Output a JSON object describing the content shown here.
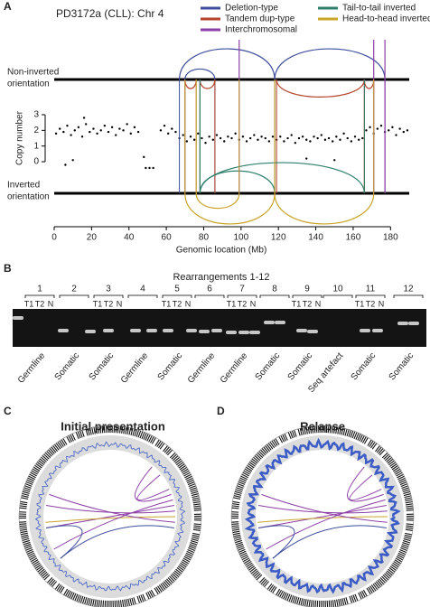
{
  "panel_a": {
    "label": "A",
    "title": "PD3172a (CLL): Chr 4",
    "legend": [
      {
        "name": "Deletion-type",
        "color": "#3e4d9c",
        "events": [
          [
            67,
            118
          ],
          [
            118,
            177
          ],
          [
            70,
            86
          ]
        ]
      },
      {
        "name": "Tandem dup-type",
        "color": "#b5432b",
        "events": [
          [
            70,
            76
          ],
          [
            78,
            86
          ],
          [
            119,
            166
          ],
          [
            166,
            171
          ]
        ]
      },
      {
        "name": "Interchromosomal",
        "color": "#8c3fa6",
        "events": [
          [
            99
          ],
          [
            171
          ],
          [
            177
          ]
        ]
      },
      {
        "name": "Tail-to-tail inverted",
        "color": "#2f7f6c",
        "events": [
          [
            78,
            118
          ],
          [
            78,
            166
          ]
        ]
      },
      {
        "name": "Head-to-head inverted",
        "color": "#c9a52a",
        "events": [
          [
            70,
            118
          ],
          [
            118,
            171
          ],
          [
            76,
            99
          ]
        ]
      }
    ],
    "non_inverted_label": [
      "Non-inverted",
      "orientation"
    ],
    "inverted_label": [
      "Inverted",
      "orientation"
    ],
    "ylabel": "Copy number",
    "xlabel": "Genomic location (Mb)",
    "xlim": [
      0,
      190
    ],
    "xticks": [
      0,
      20,
      40,
      60,
      80,
      100,
      120,
      140,
      160,
      180
    ],
    "ylim": [
      -0.5,
      3.3
    ],
    "yticks": [
      0,
      1,
      2,
      3
    ],
    "points": [
      [
        1,
        1.8
      ],
      [
        3,
        2.1
      ],
      [
        5,
        1.9
      ],
      [
        7,
        2.3
      ],
      [
        9,
        1.7
      ],
      [
        11,
        2.0
      ],
      [
        13,
        2.2
      ],
      [
        15,
        1.6
      ],
      [
        17,
        2.4
      ],
      [
        19,
        1.9
      ],
      [
        21,
        2.1
      ],
      [
        23,
        1.8
      ],
      [
        25,
        2.0
      ],
      [
        27,
        2.3
      ],
      [
        29,
        1.9
      ],
      [
        31,
        2.2
      ],
      [
        33,
        1.7
      ],
      [
        35,
        2.1
      ],
      [
        37,
        2.0
      ],
      [
        39,
        2.4
      ],
      [
        41,
        1.8
      ],
      [
        43,
        2.2
      ],
      [
        45,
        1.9
      ],
      [
        6,
        -0.2
      ],
      [
        10,
        0.1
      ],
      [
        16,
        2.8
      ],
      [
        48,
        0.3
      ],
      [
        49,
        -0.4
      ],
      [
        51,
        -0.4
      ],
      [
        53,
        -0.4
      ],
      [
        57,
        2.0
      ],
      [
        59,
        2.3
      ],
      [
        61,
        1.8
      ],
      [
        63,
        2.1
      ],
      [
        65,
        1.9
      ],
      [
        67,
        1.5
      ],
      [
        69,
        1.7
      ],
      [
        71,
        1.3
      ],
      [
        73,
        1.6
      ],
      [
        75,
        1.4
      ],
      [
        77,
        1.8
      ],
      [
        79,
        1.5
      ],
      [
        81,
        1.2
      ],
      [
        83,
        1.6
      ],
      [
        85,
        1.4
      ],
      [
        87,
        1.7
      ],
      [
        89,
        1.5
      ],
      [
        91,
        1.3
      ],
      [
        93,
        1.6
      ],
      [
        95,
        1.5
      ],
      [
        97,
        1.8
      ],
      [
        99,
        1.4
      ],
      [
        101,
        1.6
      ],
      [
        103,
        1.3
      ],
      [
        105,
        1.5
      ],
      [
        107,
        1.7
      ],
      [
        109,
        1.4
      ],
      [
        111,
        1.6
      ],
      [
        113,
        1.5
      ],
      [
        115,
        1.3
      ],
      [
        117,
        1.6
      ],
      [
        119,
        1.4
      ],
      [
        121,
        1.6
      ],
      [
        123,
        1.3
      ],
      [
        125,
        1.5
      ],
      [
        127,
        1.7
      ],
      [
        129,
        1.2
      ],
      [
        131,
        1.5
      ],
      [
        133,
        1.6
      ],
      [
        135,
        1.4
      ],
      [
        137,
        1.3
      ],
      [
        139,
        1.6
      ],
      [
        141,
        1.5
      ],
      [
        143,
        1.7
      ],
      [
        145,
        1.4
      ],
      [
        147,
        1.5
      ],
      [
        149,
        1.3
      ],
      [
        151,
        1.6
      ],
      [
        153,
        1.4
      ],
      [
        155,
        1.8
      ],
      [
        157,
        1.5
      ],
      [
        159,
        1.3
      ],
      [
        161,
        1.6
      ],
      [
        163,
        1.4
      ],
      [
        165,
        1.5
      ],
      [
        167,
        2.0
      ],
      [
        169,
        2.2
      ],
      [
        171,
        1.8
      ],
      [
        173,
        2.1
      ],
      [
        175,
        2.3
      ],
      [
        177,
        1.9
      ],
      [
        179,
        2.0
      ],
      [
        181,
        2.2
      ],
      [
        183,
        1.7
      ],
      [
        185,
        2.1
      ],
      [
        187,
        1.9
      ],
      [
        189,
        2.0
      ],
      [
        135,
        0.2
      ],
      [
        150,
        0.1
      ]
    ]
  },
  "panel_b": {
    "label": "B",
    "title": "Rearrangements 1-12",
    "numbers": [
      1,
      2,
      3,
      4,
      5,
      6,
      7,
      8,
      9,
      10,
      11,
      12
    ],
    "lanes": [
      "T1",
      "T2",
      "N"
    ],
    "calls": [
      "Germline",
      "Somatic",
      "Somatic",
      "Germline",
      "Somatic",
      "Germline",
      "Germline",
      "Somatic",
      "Somatic",
      "Seq artefact",
      "Somatic",
      "Somatic"
    ]
  },
  "panel_c": {
    "label": "C",
    "title": "Initial presentation"
  },
  "panel_d": {
    "label": "D",
    "title": "Relapse"
  }
}
